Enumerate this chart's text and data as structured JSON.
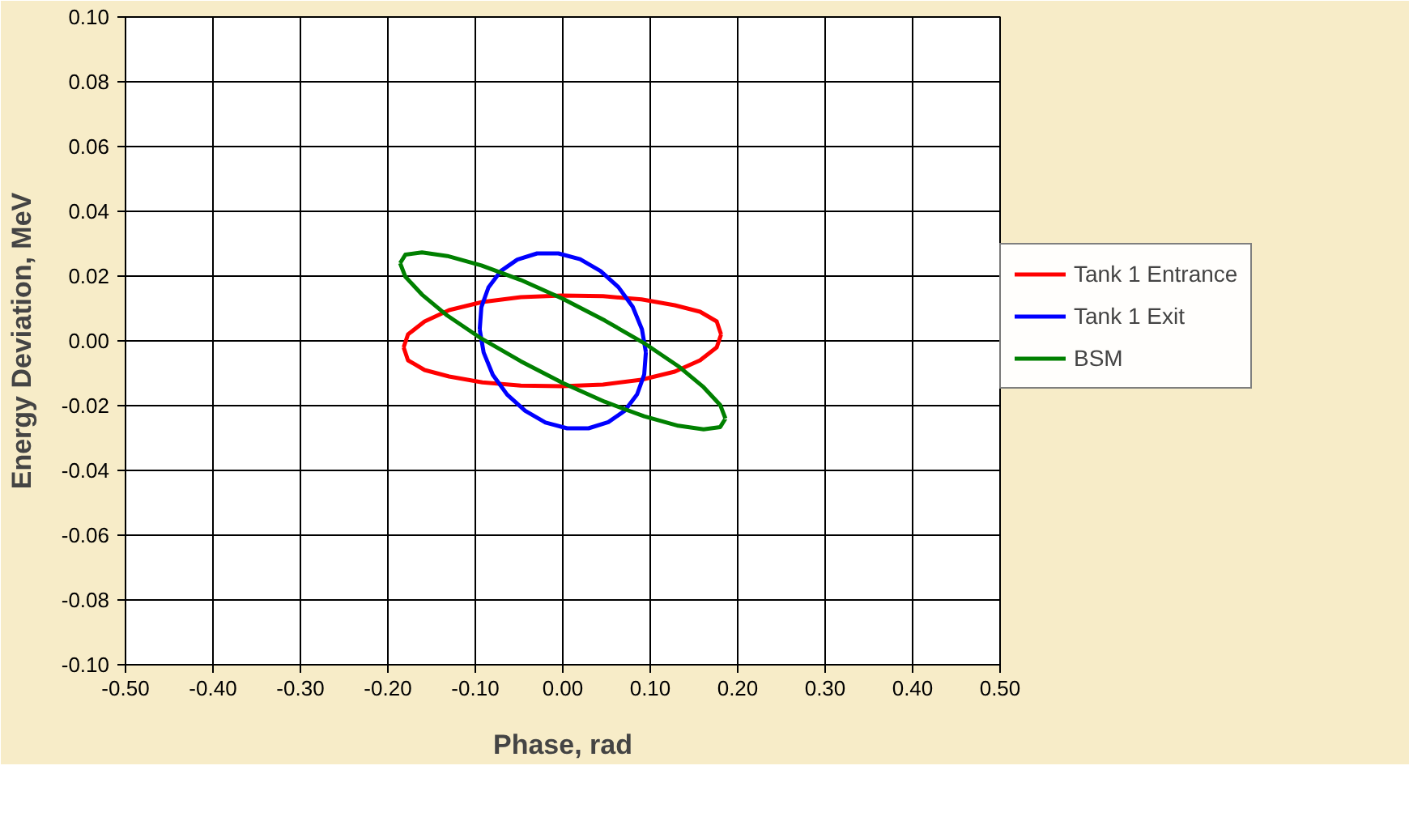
{
  "chart_data": {
    "type": "line",
    "xlabel": "Phase, rad",
    "ylabel": "Energy Deviation, MeV",
    "xlim": [
      -0.5,
      0.5
    ],
    "ylim": [
      -0.1,
      0.1
    ],
    "xticks": [
      {
        "value": -0.5,
        "label": "-0.50"
      },
      {
        "value": -0.4,
        "label": "-0.40"
      },
      {
        "value": -0.3,
        "label": "-0.30"
      },
      {
        "value": -0.2,
        "label": "-0.20"
      },
      {
        "value": -0.1,
        "label": "-0.10"
      },
      {
        "value": 0,
        "label": "0.00"
      },
      {
        "value": 0.1,
        "label": "0.10"
      },
      {
        "value": 0.2,
        "label": "0.20"
      },
      {
        "value": 0.3,
        "label": "0.30"
      },
      {
        "value": 0.4,
        "label": "0.40"
      },
      {
        "value": 0.5,
        "label": "0.50"
      }
    ],
    "yticks": [
      {
        "value": -0.1,
        "label": "-0.10"
      },
      {
        "value": -0.08,
        "label": "-0.08"
      },
      {
        "value": -0.06,
        "label": "-0.06"
      },
      {
        "value": -0.04,
        "label": "-0.04"
      },
      {
        "value": -0.02,
        "label": "-0.02"
      },
      {
        "value": 0,
        "label": "0.00"
      },
      {
        "value": 0.02,
        "label": "0.02"
      },
      {
        "value": 0.04,
        "label": "0.04"
      },
      {
        "value": 0.06,
        "label": "0.06"
      },
      {
        "value": 0.08,
        "label": "0.08"
      },
      {
        "value": 0.1,
        "label": "0.10"
      }
    ],
    "grid": true,
    "legend": "right",
    "marker": "none",
    "line_style": "solid",
    "series": [
      {
        "name": "Tank 1 Entrance",
        "color": "#ff0000",
        "x": [
          -0.182,
          -0.177,
          -0.158,
          -0.13,
          -0.092,
          -0.048,
          -0.001,
          0.046,
          0.09,
          0.128,
          0.157,
          0.176,
          0.181,
          null,
          -0.182,
          -0.177,
          -0.158,
          -0.13,
          -0.092,
          -0.048,
          -0.001,
          0.046,
          0.09,
          0.128,
          0.157,
          0.176,
          0.181
        ],
        "values": [
          -0.002,
          0.002,
          0.006,
          0.0095,
          0.012,
          0.0135,
          0.014,
          0.0138,
          0.0128,
          0.011,
          0.009,
          0.006,
          0.002,
          null,
          -0.002,
          -0.006,
          -0.009,
          -0.011,
          -0.0128,
          -0.0138,
          -0.014,
          -0.0135,
          -0.012,
          -0.0095,
          -0.006,
          -0.002,
          0.002
        ]
      },
      {
        "name": "Tank 1 Exit",
        "color": "#0000ff",
        "x": [
          -0.095,
          -0.0931,
          -0.085,
          -0.0707,
          -0.052,
          -0.0294,
          -0.005,
          0.0198,
          0.043,
          0.0636,
          0.08,
          0.0905,
          0.095,
          null,
          -0.095,
          -0.0905,
          -0.08,
          -0.0636,
          -0.043,
          -0.0198,
          0.005,
          0.0294,
          0.052,
          0.0707,
          0.085,
          0.0931,
          0.095
        ],
        "values": [
          0.0035,
          0.0104,
          0.0165,
          0.0216,
          0.0251,
          0.027,
          0.027,
          0.0252,
          0.0216,
          0.0166,
          0.0105,
          0.0036,
          -0.0035,
          null,
          0.0035,
          -0.0036,
          -0.0105,
          -0.0166,
          -0.0216,
          -0.0252,
          -0.027,
          -0.027,
          -0.0251,
          -0.0216,
          -0.0165,
          -0.0104,
          -0.0035
        ]
      },
      {
        "name": "BSM",
        "color": "#008000",
        "x": [
          -0.186,
          -0.18,
          -0.161,
          -0.132,
          -0.093,
          -0.048,
          0.0,
          0.048,
          0.093,
          0.132,
          0.161,
          0.18,
          0.186,
          null,
          -0.186,
          -0.18,
          -0.161,
          -0.132,
          -0.093,
          -0.048,
          0.0,
          0.048,
          0.093,
          0.132,
          0.161,
          0.18,
          0.186
        ],
        "values": [
          0.024,
          0.0266,
          0.0273,
          0.0262,
          0.0233,
          0.0188,
          0.013,
          0.0063,
          -0.0007,
          -0.0078,
          -0.0143,
          -0.0198,
          -0.024,
          null,
          0.024,
          0.0198,
          0.0143,
          0.0078,
          0.0007,
          -0.0063,
          -0.013,
          -0.0188,
          -0.0233,
          -0.0262,
          -0.0273,
          -0.0266,
          -0.024
        ]
      }
    ]
  }
}
